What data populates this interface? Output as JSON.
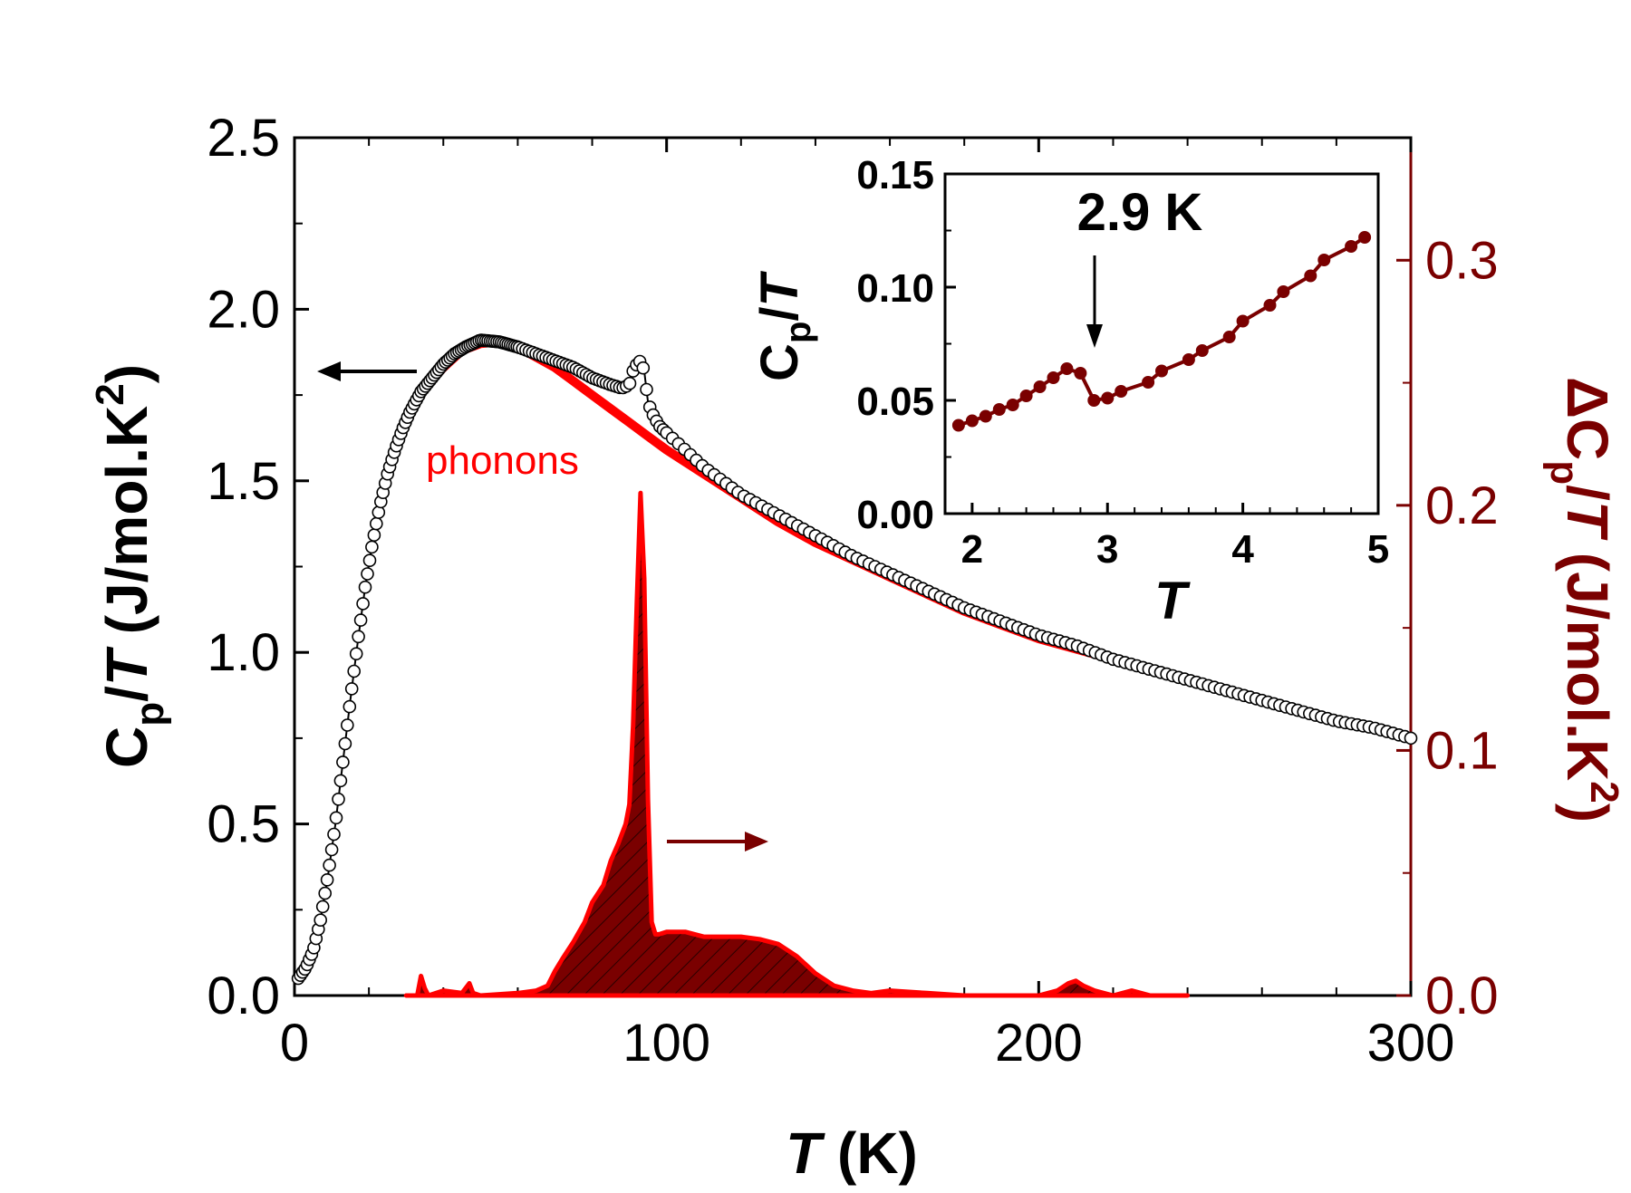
{
  "chart_data": [
    {
      "id": "main",
      "type": "scatter",
      "xlabel": "T (K)",
      "ylabel_left": "Cp/T (J/mol.K2)",
      "ylabel_right": "ΔCp/T (J/mol.K2)",
      "xlim": [
        0,
        300
      ],
      "ylim_left": [
        0,
        2.5
      ],
      "ylim_right": [
        0,
        0.35
      ],
      "x_ticks": [
        "0",
        "100",
        "200",
        "300"
      ],
      "y_left_ticks": [
        "0.0",
        "0.5",
        "1.0",
        "1.5",
        "2.0",
        "2.5"
      ],
      "y_right_ticks": [
        "0.0",
        "0.1",
        "0.2",
        "0.3"
      ],
      "colors": {
        "data": "#000000",
        "phonons": "#ff0000",
        "delta": "#7a0000"
      },
      "annotations": [
        "phonons"
      ],
      "series": [
        {
          "role": "measured Cp/T (open circles)",
          "axis": "left",
          "x": [
            1,
            3,
            5,
            7,
            9,
            11,
            13,
            15,
            17,
            19,
            21,
            23,
            25,
            27,
            29,
            31,
            34,
            37,
            40,
            43,
            46,
            50,
            55,
            60,
            65,
            70,
            75,
            80,
            85,
            88,
            90,
            91,
            92,
            93,
            94,
            95,
            96,
            97,
            98,
            100,
            105,
            110,
            120,
            130,
            140,
            150,
            160,
            170,
            180,
            190,
            200,
            210,
            220,
            230,
            240,
            250,
            260,
            270,
            280,
            290,
            300
          ],
          "y": [
            0.05,
            0.08,
            0.13,
            0.22,
            0.35,
            0.5,
            0.68,
            0.86,
            1.03,
            1.19,
            1.32,
            1.43,
            1.52,
            1.59,
            1.65,
            1.7,
            1.76,
            1.8,
            1.84,
            1.87,
            1.89,
            1.91,
            1.905,
            1.89,
            1.87,
            1.85,
            1.83,
            1.8,
            1.78,
            1.77,
            1.78,
            1.82,
            1.84,
            1.85,
            1.82,
            1.73,
            1.7,
            1.68,
            1.66,
            1.64,
            1.59,
            1.54,
            1.46,
            1.4,
            1.34,
            1.28,
            1.23,
            1.18,
            1.13,
            1.09,
            1.05,
            1.02,
            0.98,
            0.95,
            0.92,
            0.89,
            0.86,
            0.83,
            0.8,
            0.78,
            0.75
          ]
        },
        {
          "name": "phonons",
          "axis": "left",
          "x": [
            30,
            35,
            40,
            45,
            50,
            55,
            60,
            65,
            70,
            75,
            80,
            85,
            90,
            95,
            100,
            110,
            120,
            130,
            140,
            150,
            160,
            170,
            180,
            190,
            200,
            210,
            220,
            230,
            240
          ],
          "y": [
            1.68,
            1.77,
            1.83,
            1.88,
            1.9,
            1.905,
            1.89,
            1.86,
            1.83,
            1.79,
            1.75,
            1.71,
            1.67,
            1.63,
            1.59,
            1.52,
            1.45,
            1.38,
            1.32,
            1.27,
            1.22,
            1.17,
            1.12,
            1.08,
            1.04,
            1.01,
            0.98,
            0.95,
            0.92
          ]
        },
        {
          "role": "ΔCp/T (filled, hatched)",
          "axis": "right",
          "x": [
            30,
            33,
            34,
            35,
            36,
            40,
            45,
            47,
            48,
            50,
            60,
            65,
            68,
            70,
            72,
            75,
            78,
            80,
            83,
            85,
            87,
            89,
            90,
            91,
            92,
            93,
            94,
            95,
            96,
            97,
            98,
            100,
            105,
            110,
            120,
            125,
            130,
            135,
            140,
            145,
            150,
            155,
            160,
            170,
            180,
            190,
            200,
            205,
            208,
            210,
            212,
            215,
            220,
            225,
            230,
            240
          ],
          "y": [
            0,
            0,
            0.008,
            0.003,
            0,
            0.002,
            0.001,
            0.005,
            0.001,
            0,
            0.001,
            0.002,
            0.004,
            0.01,
            0.015,
            0.022,
            0.03,
            0.038,
            0.045,
            0.055,
            0.062,
            0.07,
            0.078,
            0.11,
            0.16,
            0.205,
            0.17,
            0.08,
            0.03,
            0.025,
            0.025,
            0.026,
            0.026,
            0.024,
            0.024,
            0.023,
            0.021,
            0.016,
            0.009,
            0.004,
            0.002,
            0.001,
            0.002,
            0.001,
            0,
            0,
            0,
            0.002,
            0.005,
            0.006,
            0.004,
            0.002,
            0,
            0.002,
            0,
            0
          ]
        }
      ]
    },
    {
      "id": "inset",
      "type": "line",
      "xlabel": "T",
      "ylabel": "Cp/T",
      "xlim": [
        1.8,
        5
      ],
      "ylim": [
        0,
        0.15
      ],
      "x_ticks": [
        "2",
        "3",
        "4",
        "5"
      ],
      "y_ticks": [
        "0.00",
        "0.05",
        "0.10",
        "0.15"
      ],
      "annotations": [
        "2.9 K"
      ],
      "series": [
        {
          "x": [
            1.9,
            2.0,
            2.1,
            2.2,
            2.3,
            2.4,
            2.5,
            2.6,
            2.7,
            2.8,
            2.9,
            3.0,
            3.1,
            3.3,
            3.4,
            3.6,
            3.7,
            3.9,
            4.0,
            4.2,
            4.3,
            4.5,
            4.6,
            4.8,
            4.9
          ],
          "y": [
            0.039,
            0.041,
            0.043,
            0.046,
            0.048,
            0.052,
            0.056,
            0.06,
            0.064,
            0.062,
            0.05,
            0.051,
            0.054,
            0.058,
            0.063,
            0.068,
            0.072,
            0.078,
            0.085,
            0.092,
            0.098,
            0.105,
            0.112,
            0.118,
            0.122
          ]
        }
      ]
    }
  ]
}
